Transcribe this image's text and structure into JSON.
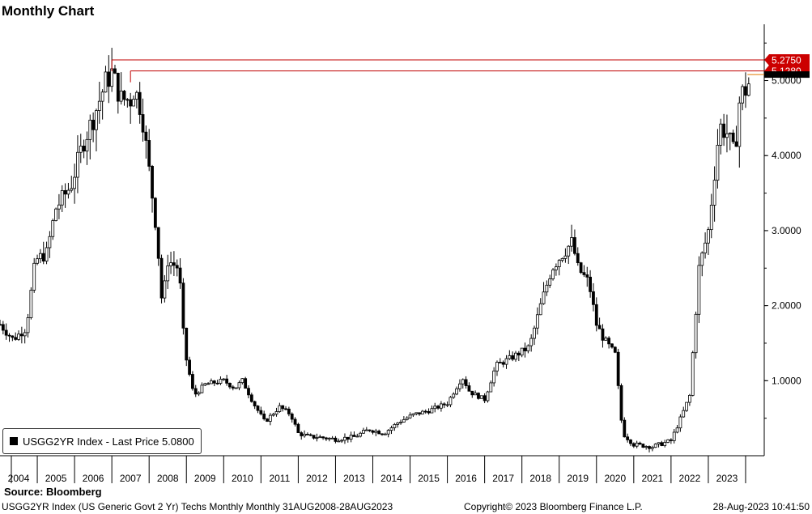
{
  "title": "Monthly Chart",
  "legend": {
    "label": "USGG2YR Index - Last Price 5.0800"
  },
  "source": "Source:  Bloomberg",
  "footer": {
    "left": "USGG2YR Index (US Generic Govt 2 Yr) Techs Monthly  Monthly 31AUG2008-28AUG2023",
    "middle": "Copyright© 2023 Bloomberg Finance L.P.",
    "right": "28-Aug-2023 10:41:50"
  },
  "colors": {
    "candle": "#000000",
    "level_line": "#c00000",
    "level_label_bg": "#cc0000",
    "last_price_line": "#e07a00"
  },
  "chart_data": {
    "type": "candlestick",
    "x_ticks": [
      "2004",
      "2005",
      "2006",
      "2007",
      "2008",
      "2009",
      "2010",
      "2011",
      "2012",
      "2013",
      "2014",
      "2015",
      "2016",
      "2017",
      "2018",
      "2019",
      "2020",
      "2021",
      "2022",
      "2023"
    ],
    "y_ticks": [
      "1.0000",
      "2.0000",
      "3.0000",
      "4.0000",
      "5.0000"
    ],
    "y_tick_values": [
      1,
      2,
      3,
      4,
      5
    ],
    "ylim": [
      0,
      5.75
    ],
    "x_range": [
      2003.5,
      2024.0
    ],
    "levels": [
      {
        "label": "5.2750",
        "value": 5.275,
        "start": 2006.5
      },
      {
        "label": "5.1280",
        "value": 5.128,
        "start": 2007.0
      }
    ],
    "last_price": 5.08,
    "series_points": [
      [
        2003.5,
        1.75
      ],
      [
        2003.85,
        1.55
      ],
      [
        2004.2,
        1.7
      ],
      [
        2004.45,
        2.6
      ],
      [
        2004.75,
        2.7
      ],
      [
        2005.0,
        3.3
      ],
      [
        2005.4,
        3.6
      ],
      [
        2005.75,
        4.2
      ],
      [
        2006.0,
        4.5
      ],
      [
        2006.35,
        5.0
      ],
      [
        2006.5,
        5.1
      ],
      [
        2006.75,
        4.75
      ],
      [
        2007.0,
        4.75
      ],
      [
        2007.1,
        4.9
      ],
      [
        2007.3,
        4.6
      ],
      [
        2007.5,
        3.8
      ],
      [
        2007.7,
        3.0
      ],
      [
        2007.85,
        2.0
      ],
      [
        2008.0,
        2.6
      ],
      [
        2008.3,
        2.5
      ],
      [
        2008.45,
        1.4
      ],
      [
        2008.7,
        0.8
      ],
      [
        2009.0,
        0.95
      ],
      [
        2009.5,
        1.0
      ],
      [
        2009.8,
        0.9
      ],
      [
        2010.0,
        1.0
      ],
      [
        2010.3,
        0.7
      ],
      [
        2010.6,
        0.45
      ],
      [
        2011.0,
        0.65
      ],
      [
        2011.3,
        0.55
      ],
      [
        2011.5,
        0.3
      ],
      [
        2011.8,
        0.25
      ],
      [
        2012.0,
        0.25
      ],
      [
        2012.5,
        0.22
      ],
      [
        2013.0,
        0.25
      ],
      [
        2013.4,
        0.35
      ],
      [
        2013.8,
        0.3
      ],
      [
        2014.2,
        0.45
      ],
      [
        2014.6,
        0.55
      ],
      [
        2015.0,
        0.6
      ],
      [
        2015.5,
        0.7
      ],
      [
        2015.9,
        1.05
      ],
      [
        2016.1,
        0.85
      ],
      [
        2016.5,
        0.75
      ],
      [
        2016.8,
        1.2
      ],
      [
        2017.2,
        1.3
      ],
      [
        2017.7,
        1.45
      ],
      [
        2018.0,
        2.0
      ],
      [
        2018.3,
        2.5
      ],
      [
        2018.6,
        2.7
      ],
      [
        2018.85,
        2.85
      ],
      [
        2019.0,
        2.5
      ],
      [
        2019.3,
        2.3
      ],
      [
        2019.5,
        1.75
      ],
      [
        2019.7,
        1.55
      ],
      [
        2020.0,
        1.35
      ],
      [
        2020.2,
        0.3
      ],
      [
        2020.5,
        0.15
      ],
      [
        2021.0,
        0.12
      ],
      [
        2021.5,
        0.2
      ],
      [
        2021.8,
        0.55
      ],
      [
        2022.0,
        0.8
      ],
      [
        2022.25,
        2.5
      ],
      [
        2022.5,
        3.0
      ],
      [
        2022.8,
        4.4
      ],
      [
        2023.0,
        4.3
      ],
      [
        2023.2,
        4.0
      ],
      [
        2023.35,
        4.8
      ],
      [
        2023.55,
        4.9
      ],
      [
        2023.65,
        5.08
      ]
    ]
  }
}
